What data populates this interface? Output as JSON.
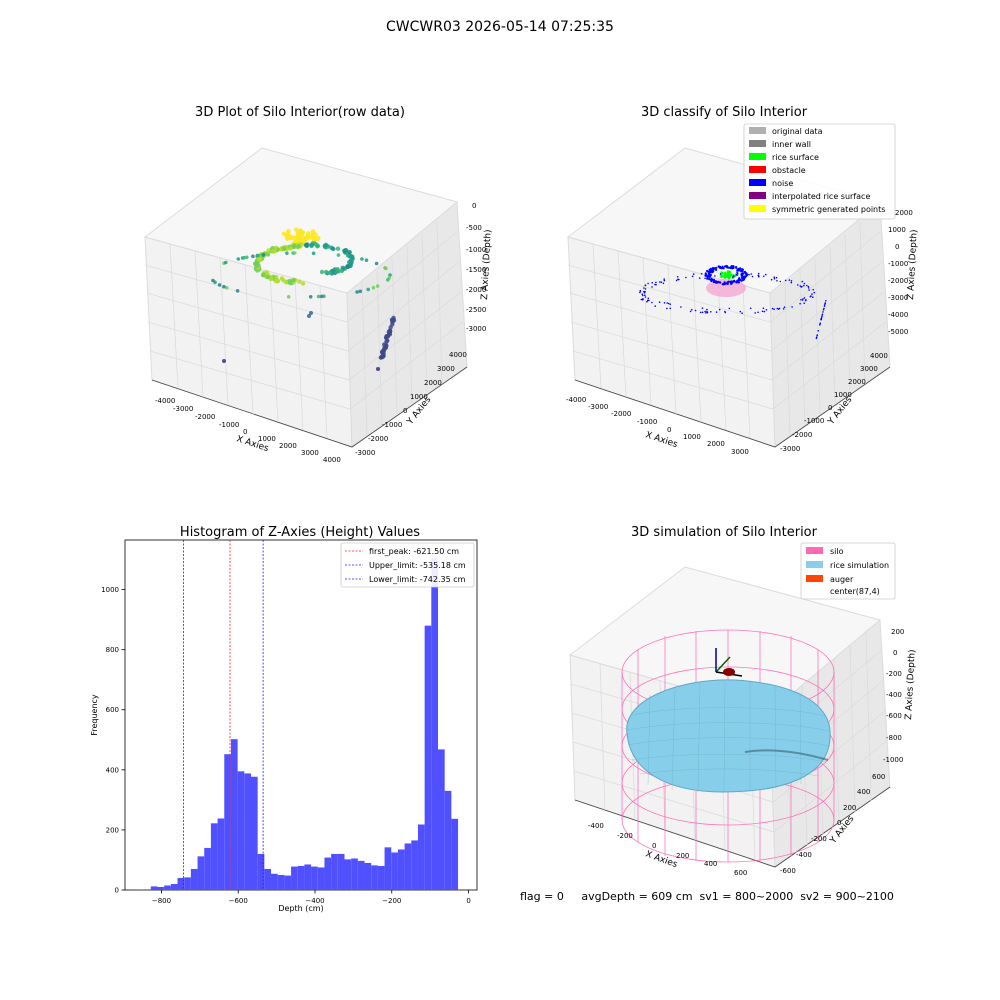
{
  "figure": {
    "suptitle": "CWCWR03 2026-05-14 07:25:35",
    "footer": "flag = 0     avgDepth = 609 cm  sv1 = 800~2000  sv2 = 900~2100"
  },
  "colors": {
    "histogram_bar": "#5050ff",
    "first_peak_line": "#ff2020",
    "limit_line": "#2020ff",
    "silo_wire": "#ff69b4",
    "rice": "#87ceeb",
    "pane": "#f2f2f2",
    "grid": "#d9d9d9"
  },
  "chart_data": [
    {
      "type": "scatter",
      "projection": "3d",
      "title": "3D Plot of Silo Interior(row data)",
      "xlabel": "X Axies",
      "ylabel": "Y Axies",
      "zlabel": "Z Axies (Depth)",
      "x_ticks": [
        "-4000",
        "-3000",
        "-2000",
        "-1000",
        "0",
        "1000",
        "2000",
        "3000",
        "4000"
      ],
      "y_ticks": [
        "-3000",
        "-2000",
        "-1000",
        "0",
        "1000",
        "2000",
        "3000",
        "4000"
      ],
      "z_ticks": [
        "0",
        "-500",
        "-1000",
        "-1500",
        "-2000",
        "-2500",
        "-3000"
      ],
      "colormap": "viridis",
      "grid": true
    },
    {
      "type": "scatter",
      "projection": "3d",
      "title": "3D classify of Silo Interior",
      "xlabel": "X Axies",
      "ylabel": "Y Axies",
      "zlabel": "Z Axies (Depth)",
      "x_ticks": [
        "-4000",
        "-3000",
        "-2000",
        "-1000",
        "0",
        "1000",
        "2000",
        "3000"
      ],
      "y_ticks": [
        "-3000",
        "-2000",
        "-1000",
        "0",
        "1000",
        "2000",
        "3000",
        "4000"
      ],
      "z_ticks": [
        "2000",
        "1000",
        "0",
        "-1000",
        "-2000",
        "-3000",
        "-4000",
        "-5000"
      ],
      "legend": {
        "placement": "top-right",
        "entries": [
          {
            "label": "original data",
            "color": "#b0b0b0"
          },
          {
            "label": "inner wall",
            "color": "#808080"
          },
          {
            "label": "rice surface",
            "color": "#00ff00"
          },
          {
            "label": "obstacle",
            "color": "#ff0000"
          },
          {
            "label": "noise",
            "color": "#0000ff"
          },
          {
            "label": "interpolated rice surface",
            "color": "#800080"
          },
          {
            "label": "symmetric generated points",
            "color": "#ffff00"
          }
        ]
      },
      "grid": true
    },
    {
      "type": "bar",
      "title": "Histogram of Z-Axies (Height) Values",
      "xlabel": "Depth (cm)",
      "ylabel": "Frequency",
      "xlim": [
        -895,
        22
      ],
      "ylim": [
        0,
        1165
      ],
      "x_ticks": [
        -800,
        -600,
        -400,
        -200,
        0
      ],
      "y_ticks": [
        0,
        200,
        400,
        600,
        800,
        1000
      ],
      "x_tick_labels": [
        "−800",
        "−600",
        "−400",
        "−200",
        "0"
      ],
      "y_tick_labels": [
        "0",
        "200",
        "400",
        "600",
        "800",
        "1000"
      ],
      "bin_width": 17.4,
      "bin_start": -880,
      "values": [
        0,
        2,
        0,
        12,
        10,
        15,
        20,
        40,
        42,
        70,
        112,
        140,
        222,
        238,
        452,
        502,
        395,
        388,
        377,
        120,
        70,
        54,
        50,
        48,
        78,
        80,
        85,
        78,
        75,
        108,
        120,
        120,
        102,
        105,
        97,
        90,
        82,
        80,
        142,
        125,
        135,
        155,
        165,
        218,
        880,
        1105,
        468,
        330,
        237
      ],
      "vlines": [
        {
          "x": -621.5,
          "style": "dashed",
          "color": "red",
          "label": "first_peak: -621.50 cm"
        },
        {
          "x": -535.18,
          "style": "dashed",
          "color": "blue",
          "label": "Upper_limit: -535.18 cm"
        },
        {
          "x": -742.35,
          "style": "dashed",
          "color": "blue",
          "label": "Lower_limit: -742.35 cm"
        }
      ],
      "legend": {
        "placement": "top-right"
      }
    },
    {
      "type": "surface",
      "projection": "3d",
      "title": "3D simulation of Silo Interior",
      "xlabel": "X Axies",
      "ylabel": "Y Axies",
      "zlabel": "Z Axies (Depth)",
      "x_ticks": [
        "-400",
        "-200",
        "0",
        "200",
        "400",
        "600"
      ],
      "y_ticks": [
        "-600",
        "-400",
        "-200",
        "0",
        "200",
        "400",
        "600"
      ],
      "z_ticks": [
        "200",
        "0",
        "-200",
        "-400",
        "-600",
        "-800",
        "-1000"
      ],
      "legend": {
        "placement": "top-right",
        "entries": [
          {
            "label": "silo",
            "color": "#ff69b4"
          },
          {
            "label": "rice simulation",
            "color": "#87ceeb"
          },
          {
            "label": "auger",
            "color": "#ff4500"
          },
          {
            "label": "center(87,4)",
            "color": "none"
          }
        ]
      },
      "grid": true
    }
  ]
}
